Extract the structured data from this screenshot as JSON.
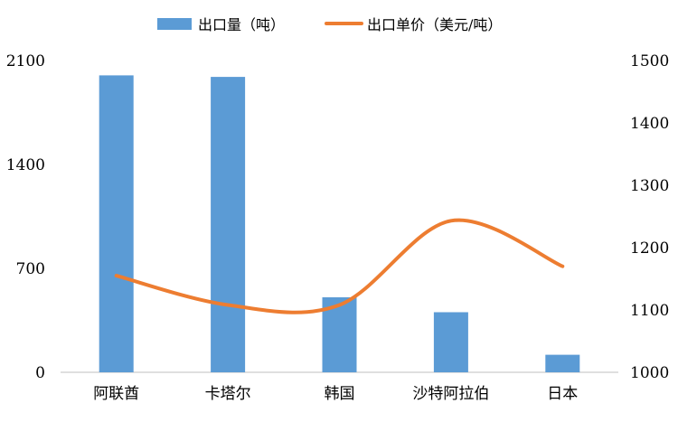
{
  "chart_data": {
    "type": "bar",
    "categories": [
      "阿联酋",
      "卡塔尔",
      "韩国",
      "沙特阿拉伯",
      "日本"
    ],
    "series": [
      {
        "name": "出口量（吨）",
        "type": "bar",
        "axis": "left",
        "color": "#5B9BD5",
        "values": [
          2000,
          1990,
          505,
          405,
          118
        ]
      },
      {
        "name": "出口单价（美元/吨）",
        "type": "line",
        "axis": "right",
        "color": "#ED7D31",
        "smooth": true,
        "values": [
          1155,
          1108,
          1108,
          1243,
          1170
        ]
      }
    ],
    "y_left": {
      "ylim": [
        0,
        2100
      ],
      "ticks": [
        0,
        700,
        1400,
        2100
      ],
      "tick_labels": [
        "0",
        "700",
        "1400",
        "2100"
      ]
    },
    "y_right": {
      "ylim": [
        1000,
        1500
      ],
      "ticks": [
        1000,
        1100,
        1200,
        1300,
        1400,
        1500
      ],
      "tick_labels": [
        "1000",
        "1100",
        "1200",
        "1300",
        "1400",
        "1500"
      ]
    },
    "grid": false,
    "legend_position": "top-center"
  }
}
